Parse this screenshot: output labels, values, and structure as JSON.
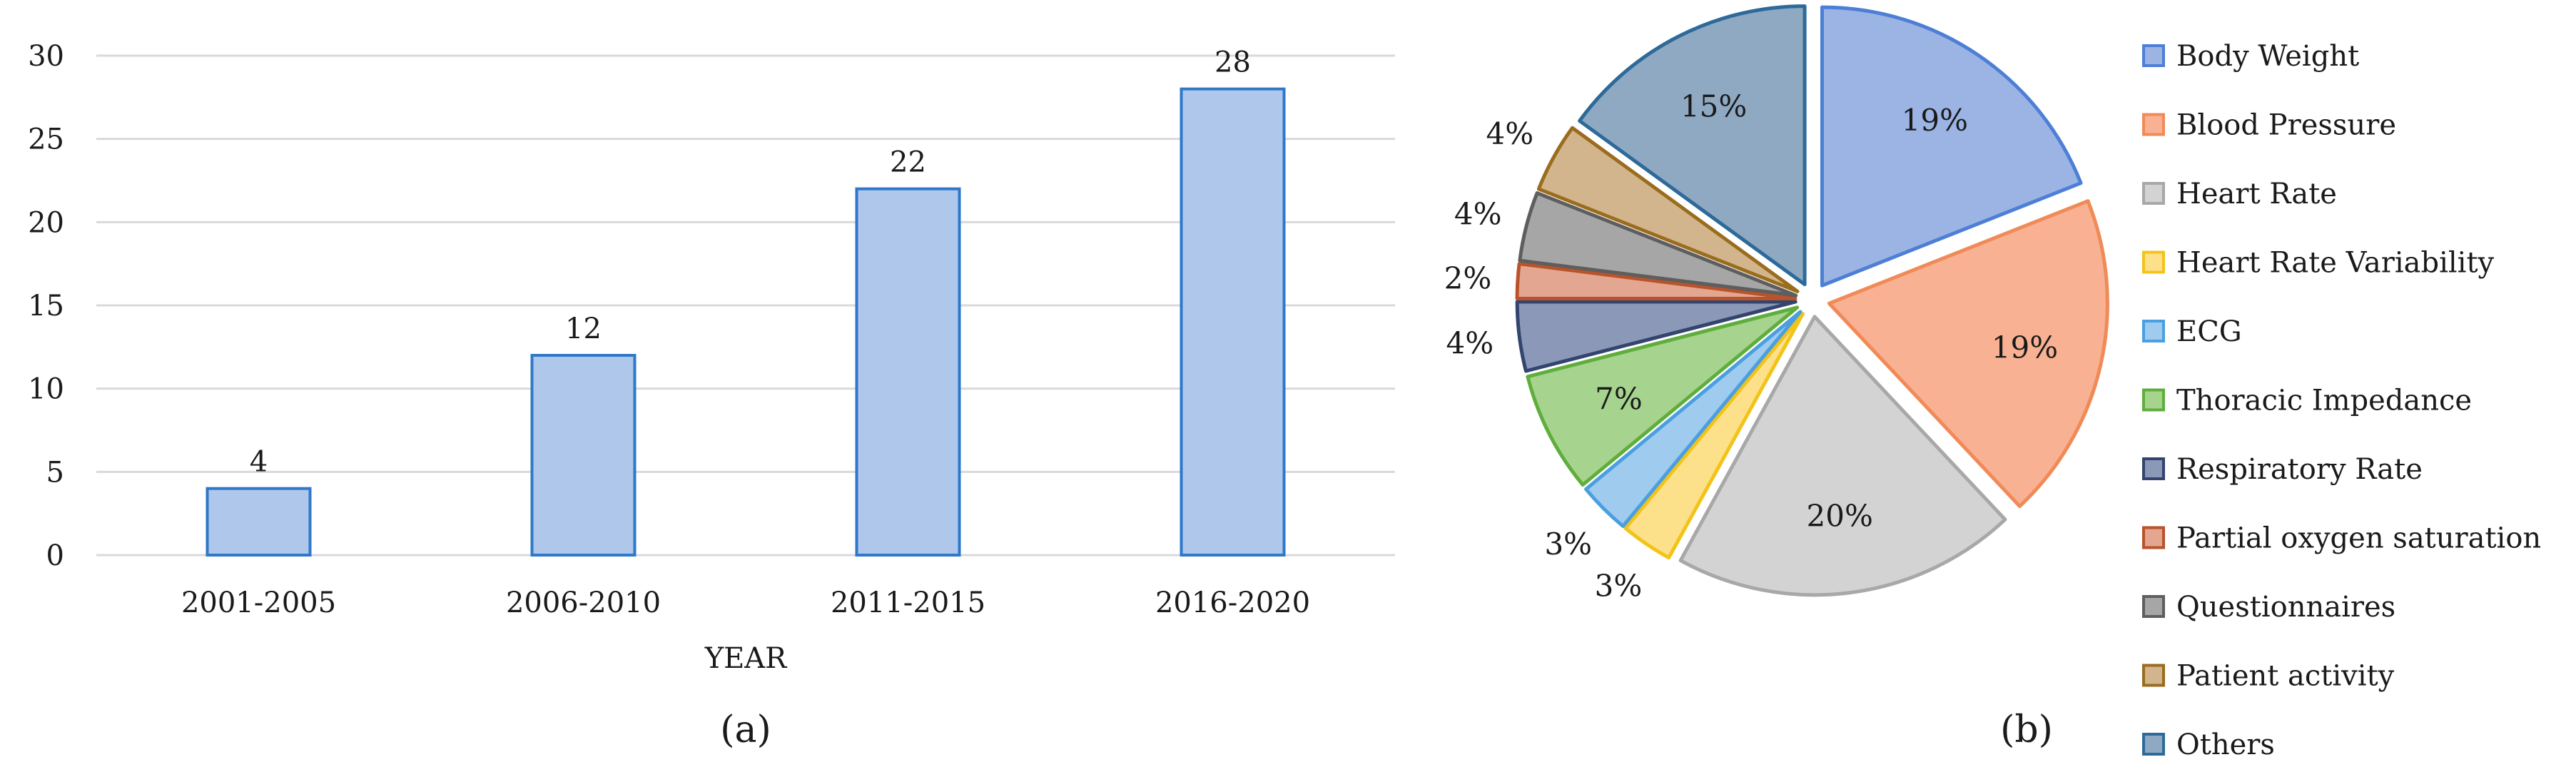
{
  "chart_data": [
    {
      "panel_label": "(a)",
      "type": "bar",
      "categories": [
        "2001-2005",
        "2006-2010",
        "2011-2015",
        "2016-2020"
      ],
      "values": [
        4,
        12,
        22,
        28
      ],
      "data_labels": [
        "4",
        "12",
        "22",
        "28"
      ],
      "title": "",
      "xlabel": "YEAR",
      "ylabel": "",
      "ylim": [
        0,
        30
      ],
      "yticks": [
        0,
        5,
        10,
        15,
        20,
        25,
        30
      ],
      "grid": true,
      "colors": {
        "bar_fill": "#aec7ea",
        "bar_stroke": "#2f78c9",
        "grid": "#d9d9d9"
      }
    },
    {
      "panel_label": "(b)",
      "type": "pie",
      "exploded": true,
      "legend_position": "right",
      "slices": [
        {
          "name": "Body Weight",
          "value": 19,
          "label": "19%",
          "color": "#9bb4e3",
          "stroke": "#4d7fd6"
        },
        {
          "name": "Blood Pressure",
          "value": 19,
          "label": "19%",
          "color": "#f9b193",
          "stroke": "#f08a57"
        },
        {
          "name": "Heart Rate",
          "value": 20,
          "label": "20%",
          "color": "#d3d3d3",
          "stroke": "#a8a8a8"
        },
        {
          "name": "Heart Rate Variability",
          "value": 3,
          "label": "3%",
          "color": "#fde08a",
          "stroke": "#f2c318"
        },
        {
          "name": "ECG",
          "value": 3,
          "label": "3%",
          "color": "#9fcbee",
          "stroke": "#4b9fe0"
        },
        {
          "name": "Thoracic Impedance",
          "value": 7,
          "label": "7%",
          "color": "#a6d38e",
          "stroke": "#5fae3c"
        },
        {
          "name": "Respiratory Rate",
          "value": 4,
          "label": "4%",
          "color": "#8c98b8",
          "stroke": "#33446e"
        },
        {
          "name": "Partial oxygen saturation",
          "value": 2,
          "label": "2%",
          "color": "#e3a690",
          "stroke": "#b9532b"
        },
        {
          "name": "Questionnaires",
          "value": 4,
          "label": "4%",
          "color": "#a6a6a6",
          "stroke": "#5e5e5e"
        },
        {
          "name": "Patient  activity",
          "value": 4,
          "label": "4%",
          "color": "#d2b58c",
          "stroke": "#9a6c1e"
        },
        {
          "name": "Others",
          "value": 15,
          "label": "15%",
          "color": "#8fa9c3",
          "stroke": "#2e6a99"
        }
      ]
    }
  ]
}
